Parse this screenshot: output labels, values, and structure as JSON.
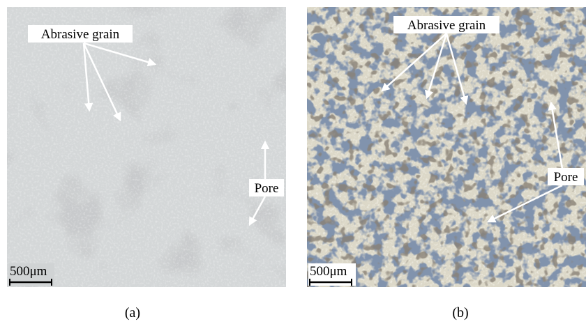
{
  "panels": [
    {
      "caption": "(a)",
      "annotations": {
        "grain": "Abrasive grain",
        "pore": "Pore"
      },
      "scale_bar": "500μm"
    },
    {
      "caption": "(b)",
      "annotations": {
        "grain": "Abrasive grain",
        "pore": "Pore"
      },
      "scale_bar": "500μm"
    }
  ]
}
